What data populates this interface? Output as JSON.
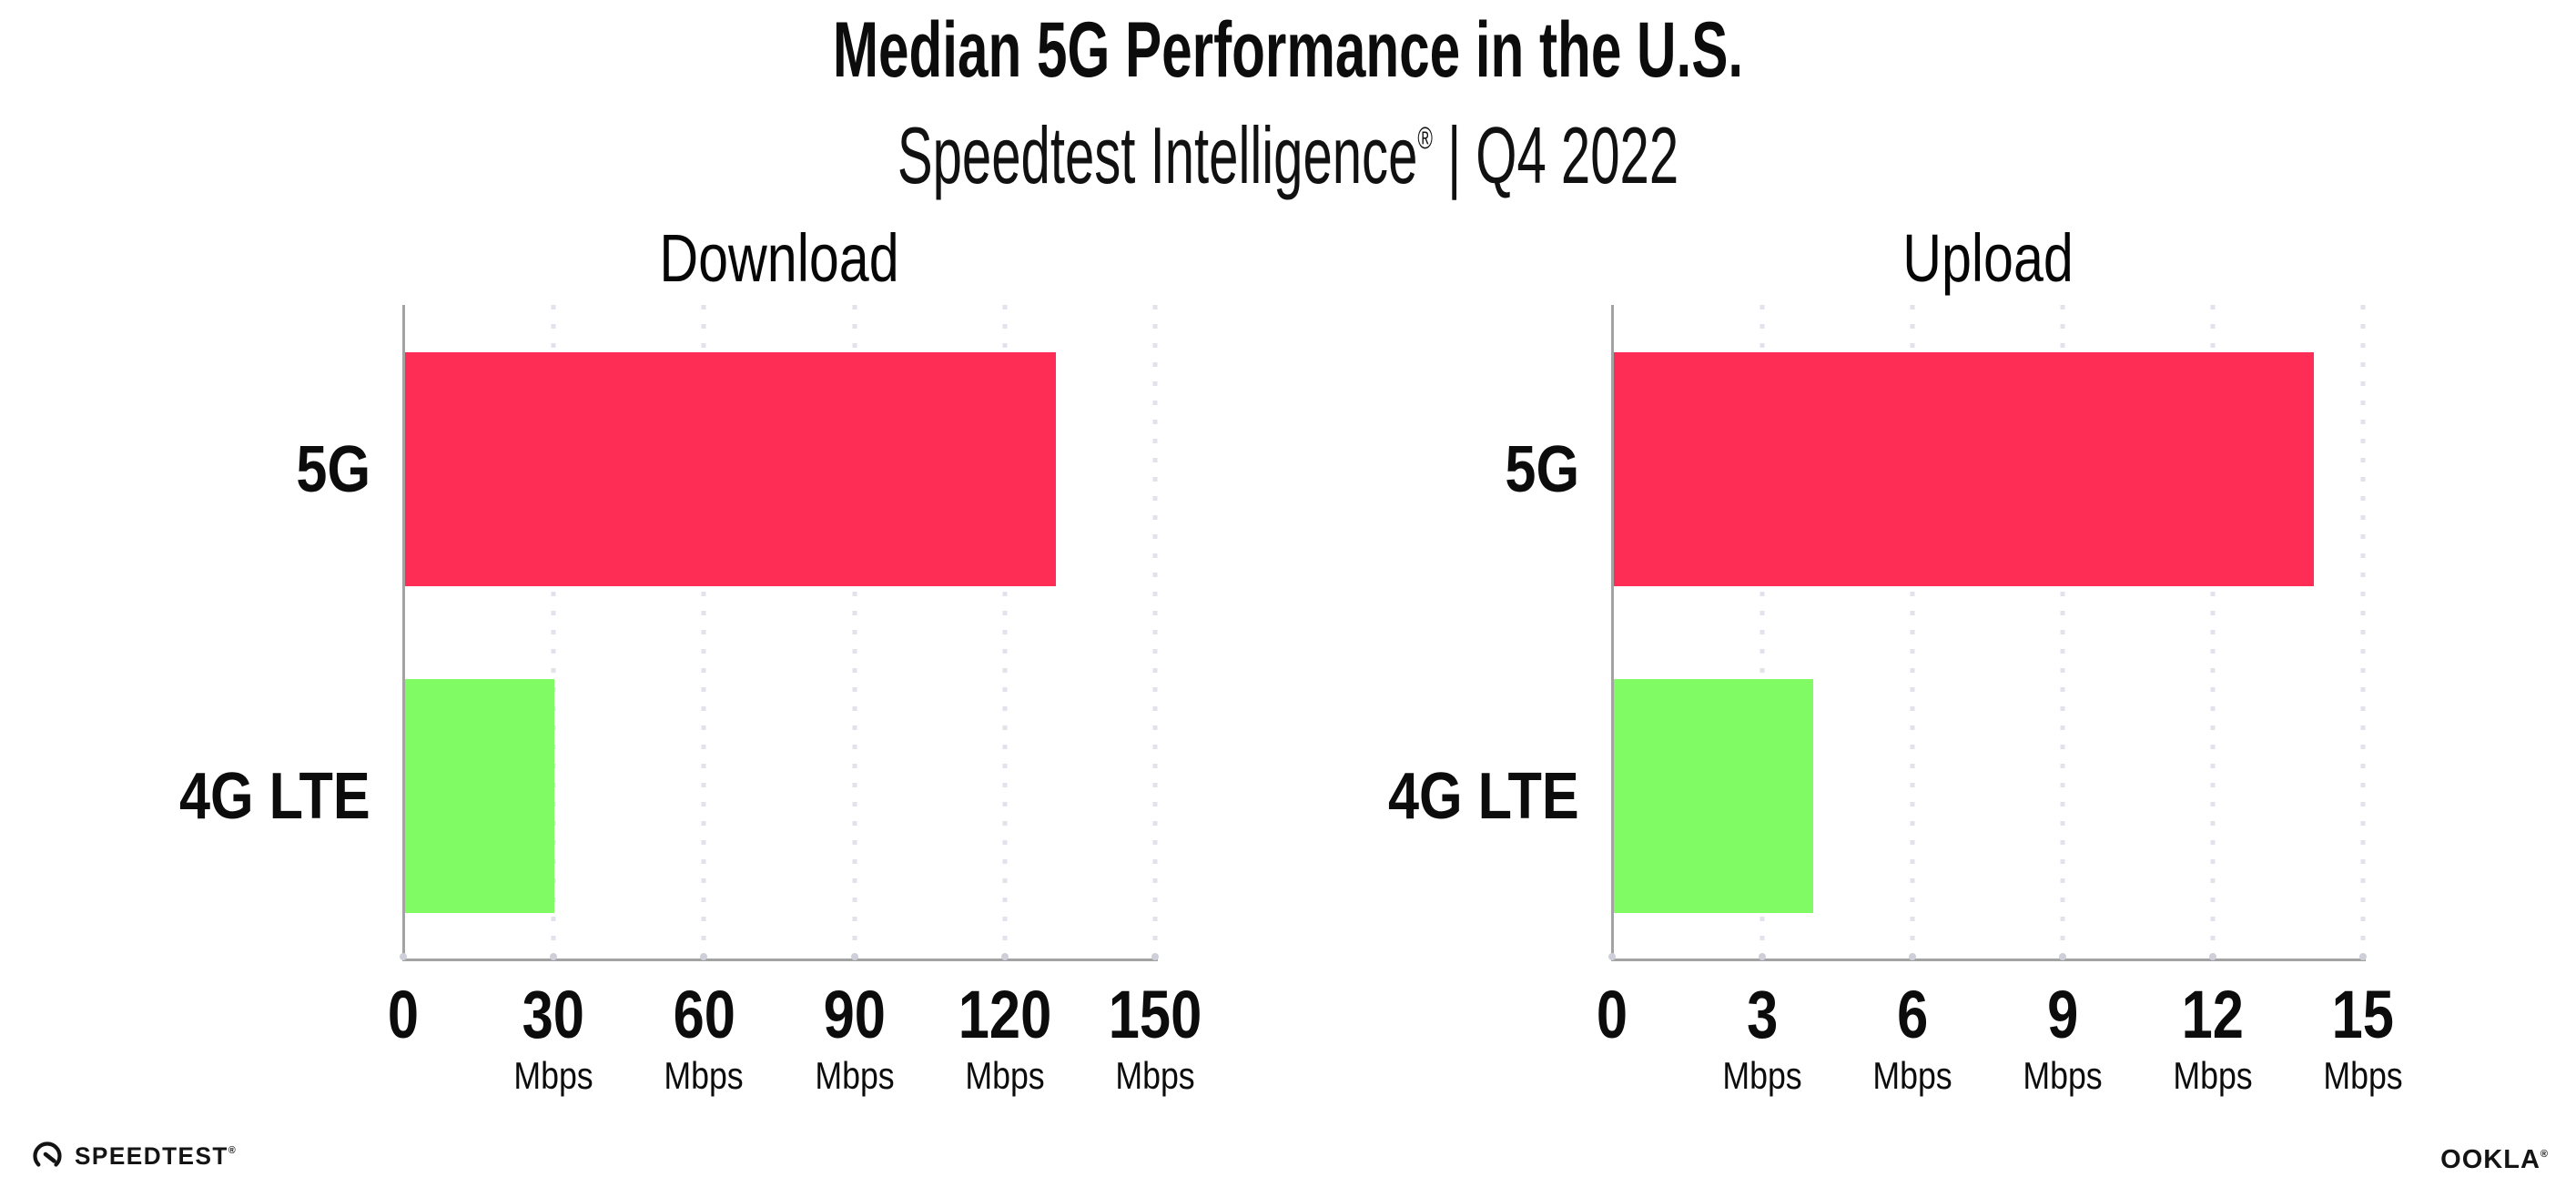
{
  "header": {
    "title": "Median 5G Performance in the U.S.",
    "subtitle_brand": "Speedtest Intelligence",
    "subtitle_reg": "®",
    "subtitle_rest": " | Q4 2022"
  },
  "chart_data": [
    {
      "type": "bar",
      "orientation": "horizontal",
      "title": "Download",
      "categories": [
        "5G",
        "4G LTE"
      ],
      "values": [
        130,
        30
      ],
      "unit": "Mbps",
      "xlim": [
        0,
        150
      ],
      "xticks": [
        0,
        30,
        60,
        90,
        120,
        150
      ],
      "bar_colors": [
        "#fe2d55",
        "#80fb63"
      ],
      "grid": "dotted-vertical",
      "legend": "none"
    },
    {
      "type": "bar",
      "orientation": "horizontal",
      "title": "Upload",
      "categories": [
        "5G",
        "4G LTE"
      ],
      "values": [
        14,
        4
      ],
      "unit": "Mbps",
      "xlim": [
        0,
        15
      ],
      "xticks": [
        0,
        3,
        6,
        9,
        12,
        15
      ],
      "bar_colors": [
        "#fe2d55",
        "#80fb63"
      ],
      "grid": "dotted-vertical",
      "legend": "none"
    }
  ],
  "colors": {
    "bar_5g": "#fe2d55",
    "bar_4g_lte": "#80fb63",
    "axis": "#a3a3a3",
    "gridline": "#e2e2ec",
    "text": "#0c0c0c"
  },
  "footer": {
    "speedtest_label": "SPEEDTEST",
    "speedtest_mark": "®",
    "ookla_label": "OOKLA",
    "ookla_mark": "®"
  }
}
